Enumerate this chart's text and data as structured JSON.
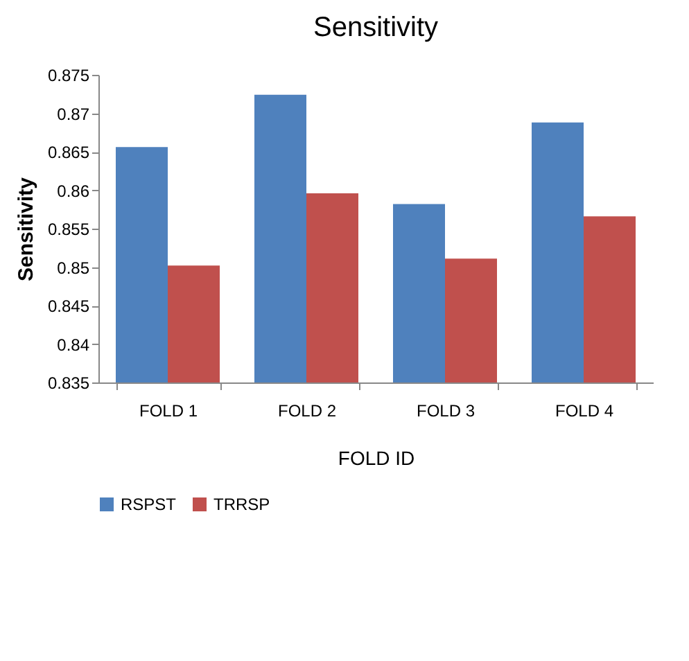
{
  "chart_data": {
    "type": "bar",
    "title": "Sensitivity",
    "xlabel": "FOLD ID",
    "ylabel": "Sensitivity",
    "categories": [
      "FOLD 1",
      "FOLD 2",
      "FOLD 3",
      "FOLD 4"
    ],
    "series": [
      {
        "name": "RSPST",
        "color": "#4f81bd",
        "values": [
          0.8656,
          0.8724,
          0.8582,
          0.8688
        ]
      },
      {
        "name": "TRRSP",
        "color": "#c0504d",
        "values": [
          0.8502,
          0.8596,
          0.8511,
          0.8566
        ]
      }
    ],
    "ylim": [
      0.835,
      0.875
    ],
    "yticks": [
      0.835,
      0.84,
      0.845,
      0.85,
      0.855,
      0.86,
      0.865,
      0.87,
      0.875
    ],
    "grid": false,
    "legend": "bottom"
  }
}
